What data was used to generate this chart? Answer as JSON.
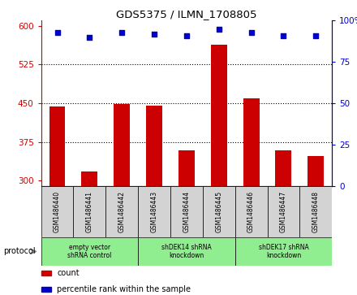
{
  "title": "GDS5375 / ILMN_1708805",
  "samples": [
    "GSM1486440",
    "GSM1486441",
    "GSM1486442",
    "GSM1486443",
    "GSM1486444",
    "GSM1486445",
    "GSM1486446",
    "GSM1486447",
    "GSM1486448"
  ],
  "counts": [
    443,
    318,
    448,
    445,
    358,
    563,
    460,
    358,
    348
  ],
  "percentiles": [
    93,
    90,
    93,
    92,
    91,
    95,
    93,
    91,
    91
  ],
  "ylim_left": [
    290,
    610
  ],
  "ylim_right": [
    0,
    100
  ],
  "yticks_left": [
    300,
    375,
    450,
    525,
    600
  ],
  "yticks_right": [
    0,
    25,
    50,
    75,
    100
  ],
  "bar_color": "#cc0000",
  "dot_color": "#0000cc",
  "group_labels": [
    "empty vector\nshRNA control",
    "shDEK14 shRNA\nknockdown",
    "shDEK17 shRNA\nknockdown"
  ],
  "group_ranges": [
    [
      0,
      3
    ],
    [
      3,
      6
    ],
    [
      6,
      9
    ]
  ],
  "group_color": "#90ee90",
  "legend_count_label": "count",
  "legend_percentile_label": "percentile rank within the sample",
  "protocol_label": "protocol",
  "xlabel_area_color": "#d3d3d3",
  "plot_bg_color": "#ffffff",
  "ytick_left_color": "#cc0000",
  "ytick_right_color": "#0000cc",
  "grid_ticks": [
    375,
    450,
    525
  ]
}
